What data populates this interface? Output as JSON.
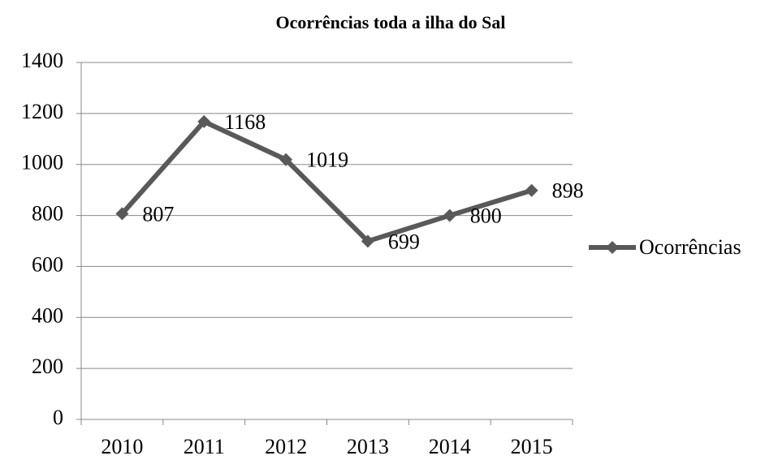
{
  "chart_data": {
    "type": "line",
    "title": "Ocorrências toda a ilha do Sal",
    "categories": [
      "2010",
      "2011",
      "2012",
      "2013",
      "2014",
      "2015"
    ],
    "series": [
      {
        "name": "Ocorrências",
        "color": "#595959",
        "values": [
          807,
          1168,
          1019,
          699,
          800,
          898
        ]
      }
    ],
    "ylim": [
      0,
      1400
    ],
    "yticks": [
      0,
      200,
      400,
      600,
      800,
      1000,
      1200,
      1400
    ],
    "grid": true,
    "legend": "right"
  }
}
